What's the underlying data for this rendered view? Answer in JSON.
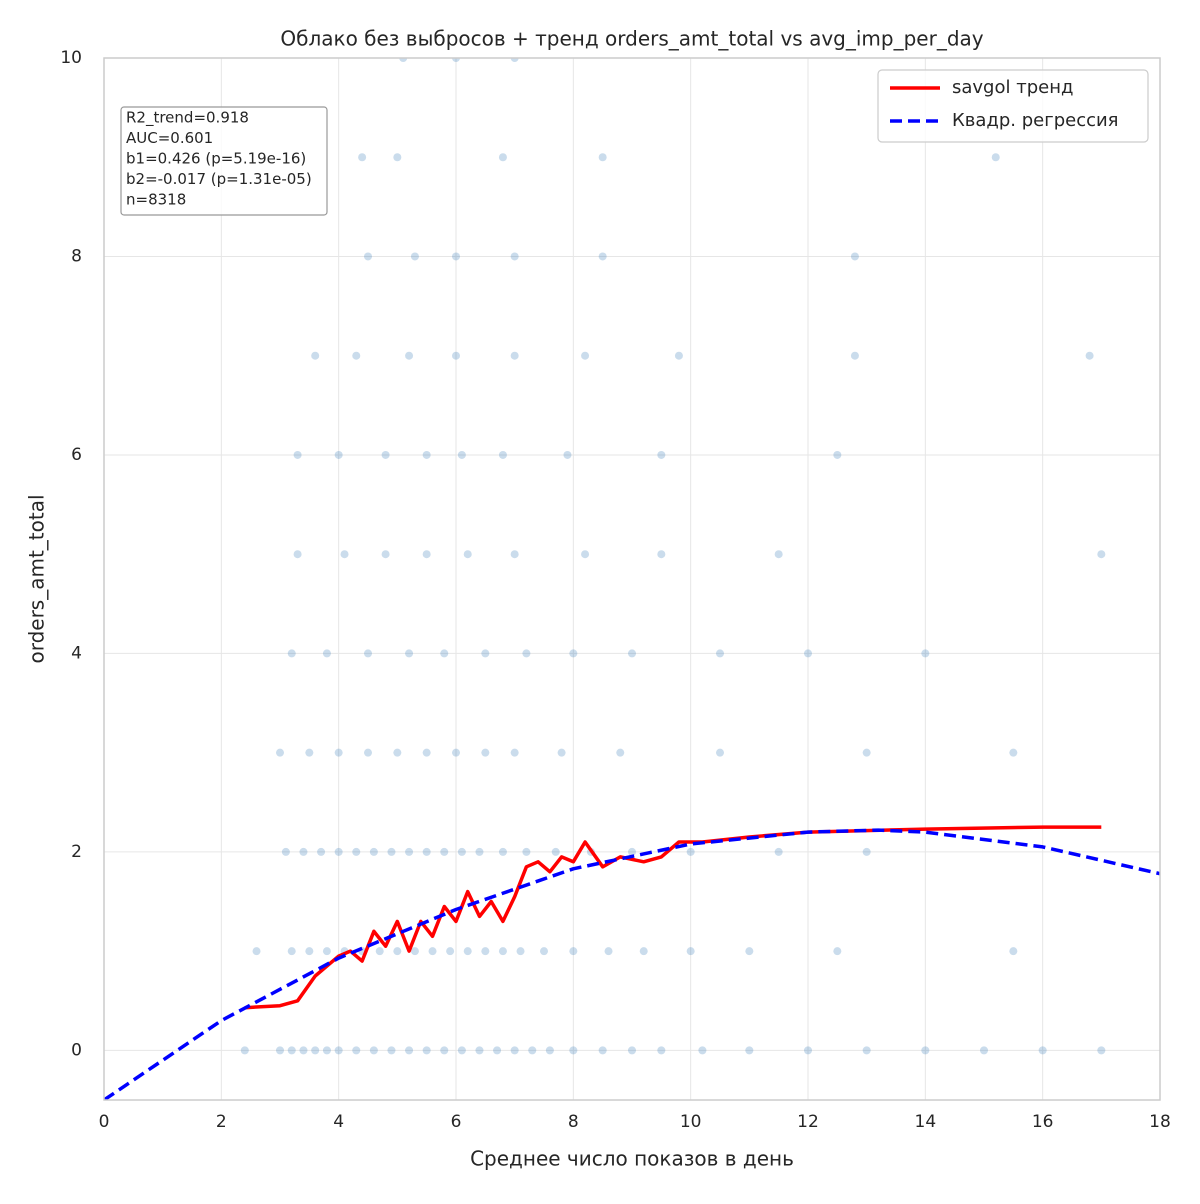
{
  "chart_data": {
    "type": "scatter",
    "title": "Облако без выбросов + тренд orders_amt_total vs avg_imp_per_day",
    "x_label": "Среднее число показов в день",
    "y_label": "orders_amt_total",
    "xlim": [
      0,
      18
    ],
    "ylim": [
      -0.5,
      10
    ],
    "xticks": [
      0,
      2,
      4,
      6,
      8,
      10,
      12,
      14,
      16,
      18
    ],
    "yticks": [
      0,
      2,
      4,
      6,
      8,
      10
    ],
    "grid": true,
    "legend": "upper right",
    "annotation": [
      "R2_trend=0.918",
      "AUC=0.601",
      "b1=0.426 (p=5.19e-16)",
      "b2=-0.017 (p=1.31e-05)",
      "n=8318"
    ],
    "scatter": {
      "color": "#2b74b3",
      "alpha": 0.25,
      "groups": [
        {
          "y": 0,
          "x": [
            2.4,
            3.0,
            3.2,
            3.4,
            3.6,
            3.8,
            4.0,
            4.3,
            4.6,
            4.9,
            5.2,
            5.5,
            5.8,
            6.1,
            6.4,
            6.7,
            7.0,
            7.3,
            7.6,
            8.0,
            8.5,
            9.0,
            9.5,
            10.2,
            11,
            12,
            13,
            14,
            15,
            16,
            17
          ]
        },
        {
          "y": 1,
          "x": [
            2.6,
            3.2,
            3.5,
            3.8,
            4.1,
            4.4,
            4.7,
            5.0,
            5.3,
            5.6,
            5.9,
            6.2,
            6.5,
            6.8,
            7.1,
            7.5,
            8.0,
            8.6,
            9.2,
            10,
            11,
            12.5,
            15.5
          ]
        },
        {
          "y": 2,
          "x": [
            3.1,
            3.4,
            3.7,
            4.0,
            4.3,
            4.6,
            4.9,
            5.2,
            5.5,
            5.8,
            6.1,
            6.4,
            6.8,
            7.2,
            7.7,
            8.3,
            9.0,
            10,
            11.5,
            13
          ]
        },
        {
          "y": 3,
          "x": [
            3.0,
            3.5,
            4.0,
            4.5,
            5.0,
            5.5,
            6.0,
            6.5,
            7.0,
            7.8,
            8.8,
            10.5,
            13,
            15.5
          ]
        },
        {
          "y": 4,
          "x": [
            3.2,
            3.8,
            4.5,
            5.2,
            5.8,
            6.5,
            7.2,
            8.0,
            9.0,
            10.5,
            12,
            14
          ]
        },
        {
          "y": 5,
          "x": [
            3.3,
            4.1,
            4.8,
            5.5,
            6.2,
            7.0,
            8.2,
            9.5,
            11.5,
            17
          ]
        },
        {
          "y": 6,
          "x": [
            3.3,
            4.0,
            4.8,
            5.5,
            6.1,
            6.8,
            7.9,
            9.5,
            12.5
          ]
        },
        {
          "y": 7,
          "x": [
            3.6,
            4.3,
            5.2,
            6.0,
            7.0,
            8.2,
            9.8,
            12.8,
            16.8
          ]
        },
        {
          "y": 8,
          "x": [
            4.5,
            5.3,
            6.0,
            7.0,
            8.5,
            12.8
          ]
        },
        {
          "y": 9,
          "x": [
            4.4,
            5.0,
            6.8,
            8.5,
            15.2
          ]
        },
        {
          "y": 10,
          "x": [
            5.1,
            6.0,
            7.0
          ]
        }
      ]
    },
    "series": [
      {
        "name": "savgol тренд",
        "color": "#ff0000",
        "dash": false,
        "x": [
          2.4,
          3.0,
          3.3,
          3.6,
          4.0,
          4.2,
          4.4,
          4.6,
          4.8,
          5.0,
          5.2,
          5.4,
          5.6,
          5.8,
          6.0,
          6.2,
          6.4,
          6.6,
          6.8,
          7.0,
          7.2,
          7.4,
          7.6,
          7.8,
          8.0,
          8.2,
          8.5,
          8.8,
          9.2,
          9.5,
          9.8,
          10.2,
          11,
          12,
          14,
          16,
          17
        ],
        "values": [
          0.43,
          0.45,
          0.5,
          0.75,
          0.95,
          1.0,
          0.9,
          1.2,
          1.05,
          1.3,
          1.0,
          1.3,
          1.15,
          1.45,
          1.3,
          1.6,
          1.35,
          1.5,
          1.3,
          1.55,
          1.85,
          1.9,
          1.8,
          1.95,
          1.9,
          2.1,
          1.85,
          1.95,
          1.9,
          1.95,
          2.1,
          2.1,
          2.15,
          2.2,
          2.23,
          2.25,
          2.25
        ]
      },
      {
        "name": "Квадр. регрессия",
        "color": "#0000ff",
        "dash": true,
        "x": [
          0,
          2,
          4,
          6,
          8,
          10,
          12,
          13.2,
          14,
          16,
          18
        ],
        "values": [
          -0.5,
          0.3,
          0.93,
          1.42,
          1.83,
          2.08,
          2.2,
          2.22,
          2.2,
          2.05,
          1.78
        ]
      }
    ]
  }
}
